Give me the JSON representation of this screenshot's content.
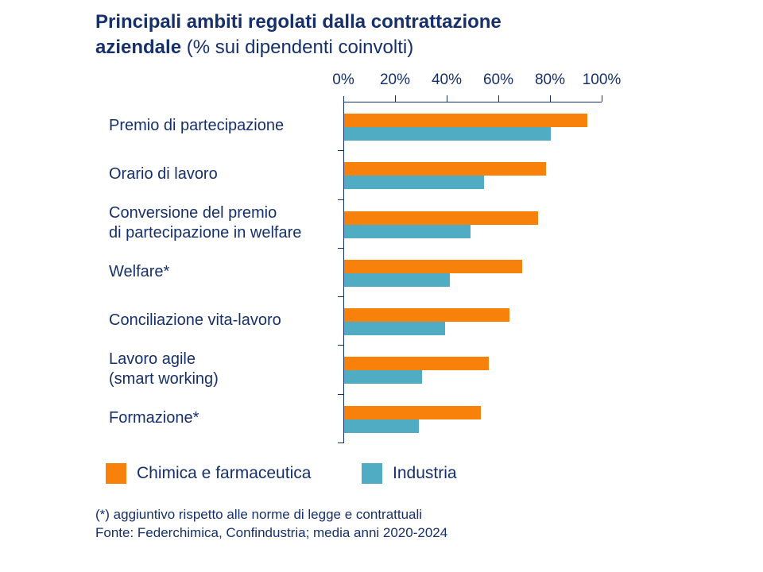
{
  "page": {
    "background": "#FFFFFF",
    "text_navy": "#16306B",
    "axis_color": "#16306B"
  },
  "title": {
    "line1_bold": "Principali ambiti regolati dalla contrattazione",
    "line2_bold": "aziendale",
    "line2_regular": " (% sui dipendenti coinvolti)"
  },
  "chart_data": {
    "type": "bar",
    "orientation": "horizontal",
    "title": "Principali ambiti regolati dalla contrattazione aziendale (% sui dipendenti coinvolti)",
    "categories": [
      "Premio di partecipazione",
      "Orario di lavoro",
      "Conversione del premio\ndi partecipazione in welfare",
      "Welfare*",
      "Conciliazione vita-lavoro",
      "Lavoro agile\n(smart working)",
      "Formazione*"
    ],
    "series": [
      {
        "name": "Chimica e farmaceutica",
        "color": "#F8810C",
        "values": [
          94,
          78,
          75,
          69,
          64,
          56,
          53
        ]
      },
      {
        "name": "Industria",
        "color": "#50ACC3",
        "values": [
          80,
          54,
          49,
          41,
          39,
          30,
          29
        ]
      }
    ],
    "x_axis": {
      "tick_labels": [
        "0%",
        "20%",
        "40%",
        "60%",
        "80%",
        "100%"
      ],
      "min": 0,
      "max": 100,
      "step": 20,
      "unit": "%"
    },
    "legend_position": "bottom",
    "grid": false
  },
  "footnotes": [
    "(*) aggiuntivo rispetto alle norme di legge e contrattuali",
    "Fonte: Federchimica, Confindustria; media anni 2020-2024"
  ]
}
